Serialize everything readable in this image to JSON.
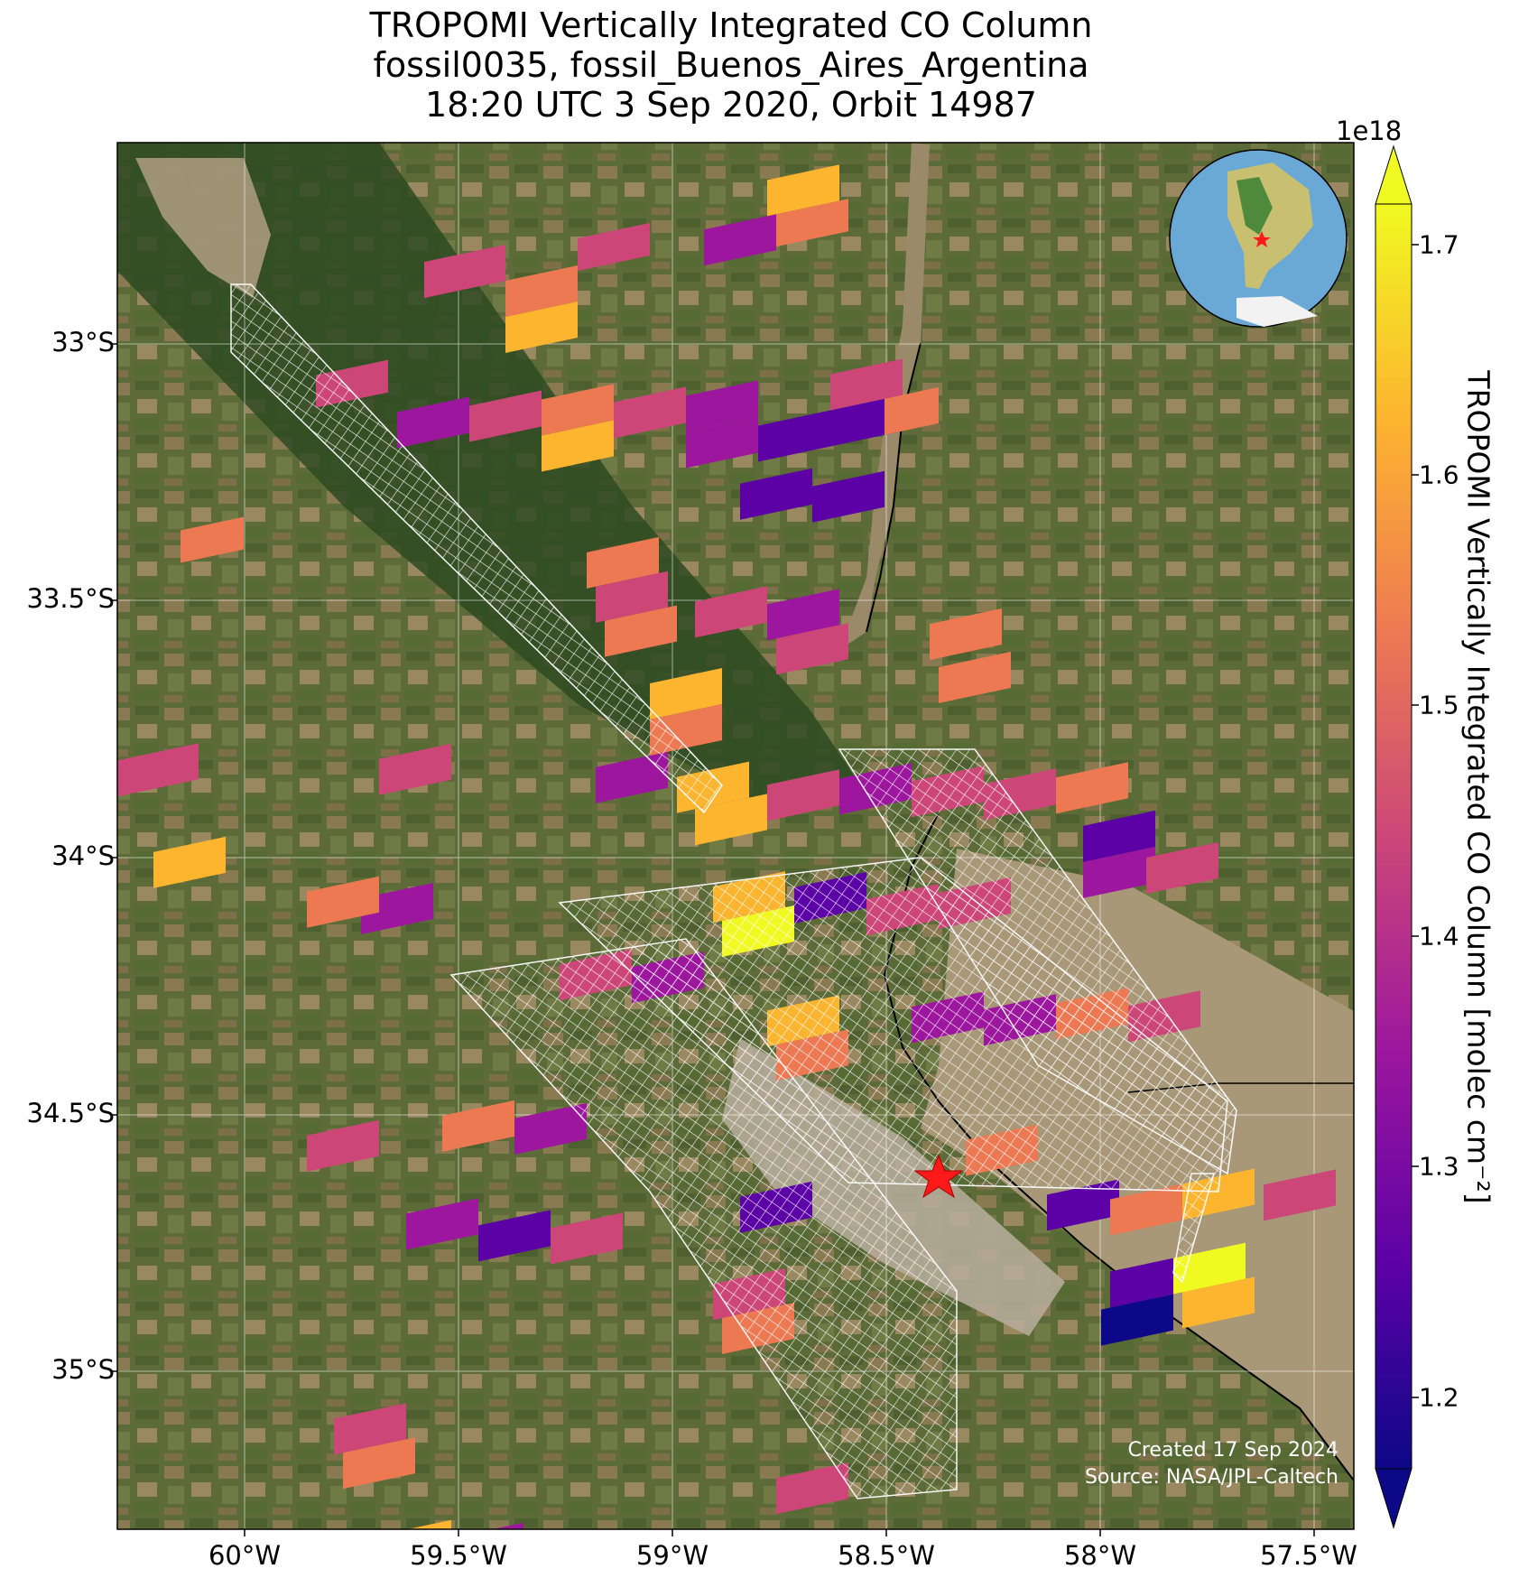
{
  "title": {
    "line1": "TROPOMI Vertically Integrated CO Column",
    "line2": "fossil0035, fossil_Buenos_Aires_Argentina",
    "line3": "18:20 UTC 3 Sep 2020, Orbit 14987"
  },
  "axes": {
    "lat_ticks": [
      "33°S",
      "33.5°S",
      "34°S",
      "34.5°S",
      "35°S"
    ],
    "lon_ticks": [
      "60°W",
      "59.5°W",
      "59°W",
      "58.5°W",
      "58°W",
      "57.5°W"
    ]
  },
  "colorbar": {
    "label": "TROPOMI Vertically Integrated CO Column [molec cm⁻²]",
    "exponent": "1e18",
    "ticks": [
      "1.2",
      "1.3",
      "1.4",
      "1.5",
      "1.6",
      "1.7"
    ],
    "colormap": "plasma",
    "colors": [
      "#0d0887",
      "#5c01a6",
      "#9c179e",
      "#cc4778",
      "#ed7953",
      "#fdb42f",
      "#f0f921"
    ]
  },
  "credits": {
    "created": "Created 17 Sep 2024",
    "source": "Source: NASA/JPL-Caltech"
  },
  "map": {
    "site_marker": "red-star",
    "background": "satellite-imagery",
    "target_overlay": "white-outlined-footprints"
  }
}
